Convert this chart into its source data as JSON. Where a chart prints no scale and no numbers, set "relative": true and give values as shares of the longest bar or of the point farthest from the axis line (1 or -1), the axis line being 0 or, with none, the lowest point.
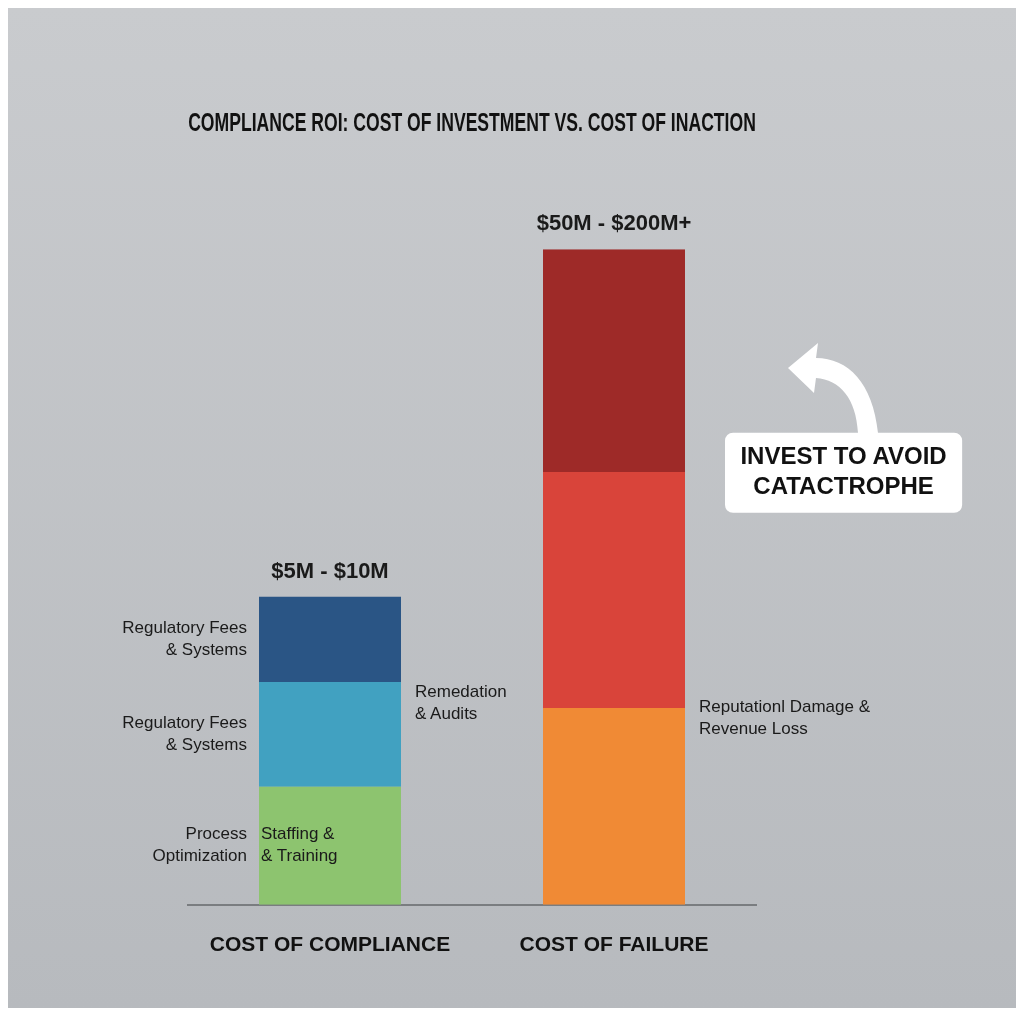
{
  "chart_data": {
    "type": "bar",
    "title": "COMPLIANCE ROI: COST OF INVESTMENT VS. COST OF INACTION",
    "categories": [
      "COST OF COMPLIANCE",
      "COST OF FAILURE"
    ],
    "relative": true,
    "stacked": true,
    "grid": false,
    "legend": false,
    "series": [
      {
        "colors": [
          "#8dc46f",
          "#f08a35"
        ],
        "values": [
          0.18,
          0.3
        ]
      },
      {
        "colors": [
          "#41a1c1",
          "#d9443a"
        ],
        "values": [
          0.16,
          0.36
        ]
      },
      {
        "colors": [
          "#2a5585",
          "#9e2a28"
        ],
        "values": [
          0.13,
          0.34
        ]
      }
    ],
    "totals": [
      "$5M - $10M",
      "$50M - $200M+"
    ],
    "annotations": [
      "Regulatory Fees & Systems",
      "Regulatory Fees & Systems",
      "Process Optimization",
      "Staffing & & Training",
      "Remedation & Audits",
      "Reputationl Damage & Revenue Loss",
      "INVEST TO AVOID CATACTROPHE"
    ]
  }
}
